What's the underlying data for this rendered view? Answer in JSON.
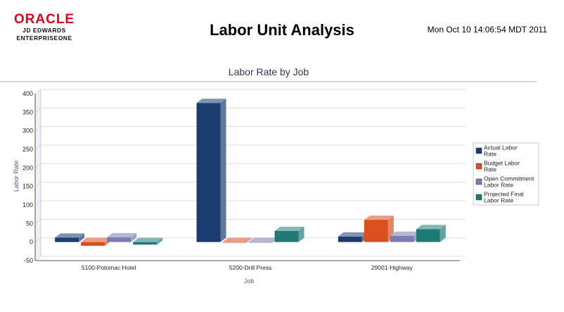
{
  "header": {
    "logo_word": "ORACLE",
    "logo_line1": "JD EDWARDS",
    "logo_line2": "ENTERPRISEONE",
    "title": "Labor Unit Analysis",
    "timestamp": "Mon Oct 10 14:06:54 MDT 2011"
  },
  "chart_data": {
    "type": "bar",
    "title": "Labor Rate by Job",
    "xlabel": "Job",
    "ylabel": "Labor Rate",
    "ylim": [
      -50,
      400
    ],
    "yticks": [
      -50,
      0,
      50,
      100,
      150,
      200,
      250,
      300,
      350,
      400
    ],
    "categories": [
      "5100-Potomac Hotel",
      "5200-Drill Press",
      "29001-Highway"
    ],
    "series": [
      {
        "name": "Actual Labor Rate",
        "values": [
          12,
          375,
          15
        ],
        "color": "#1a3c6e"
      },
      {
        "name": "Budget Labor Rate",
        "values": [
          -10,
          0,
          60
        ],
        "color": "#d94f1e"
      },
      {
        "name": "Open Commitment Labor Rate",
        "values": [
          13,
          0,
          17
        ],
        "color": "#7c7cb3"
      },
      {
        "name": "Projected Final Labor Rate",
        "values": [
          -7,
          30,
          35
        ],
        "color": "#1f7a76"
      }
    ],
    "legend_position": "right",
    "grid": true
  }
}
